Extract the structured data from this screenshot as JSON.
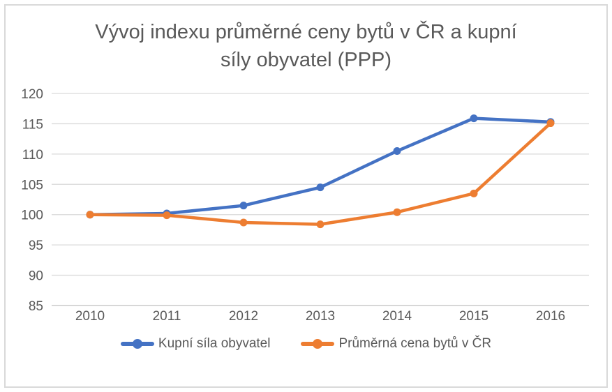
{
  "frame": {
    "background": "#ffffff",
    "border_color": "#d9d9d9"
  },
  "chart_data": {
    "type": "line",
    "title": "Vývoj indexu průměrné ceny bytů v ČR a kupní síly obyvatel (PPP)",
    "categories": [
      "2010",
      "2011",
      "2012",
      "2013",
      "2014",
      "2015",
      "2016"
    ],
    "series": [
      {
        "name": "Kupní síla obyvatel",
        "color": "#4472C4",
        "values": [
          100,
          100.2,
          101.5,
          104.5,
          110.5,
          115.9,
          115.3
        ]
      },
      {
        "name": "Průměrná cena bytů v ČR",
        "color": "#ED7D31",
        "values": [
          100,
          99.9,
          98.7,
          98.4,
          100.4,
          103.5,
          115.1
        ]
      }
    ],
    "y_ticks": [
      120,
      115,
      110,
      105,
      100,
      95,
      90,
      85
    ],
    "ylim": [
      85,
      120
    ],
    "grid": true,
    "legend_position": "bottom",
    "styles": {
      "grid_color": "#D9D9D9",
      "axis_color": "#BFBFBF",
      "text_color": "#595959",
      "title_color": "#595959",
      "tick_font_size": 19,
      "line_width": 4.5,
      "marker_radius": 5.5
    }
  }
}
